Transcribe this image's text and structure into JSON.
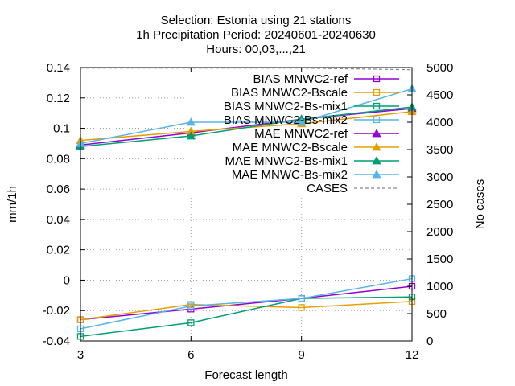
{
  "title_lines": [
    "Selection: Estonia using    21 stations",
    "1h Precipitation   Period: 20240601-20240630",
    "Hours: 00,03,...,21"
  ],
  "chart_data": {
    "type": "line",
    "xlabel": "Forecast length",
    "ylabel": "mm/1h",
    "y2label": "No cases",
    "x": [
      3,
      6,
      9,
      12
    ],
    "xticks": [
      "3",
      "6",
      "9",
      "12"
    ],
    "xlim": [
      3,
      12
    ],
    "ylim": [
      -0.04,
      0.14
    ],
    "yticks": [
      "-0.04",
      "-0.02",
      "0",
      "0.02",
      "0.04",
      "0.06",
      "0.08",
      "0.1",
      "0.12",
      "0.14"
    ],
    "y2lim": [
      0,
      5000
    ],
    "y2ticks": [
      "0",
      "500",
      "1000",
      "1500",
      "2000",
      "2500",
      "3000",
      "3500",
      "4000",
      "4500",
      "5000"
    ],
    "grid": true,
    "legend_position": "top-right",
    "series": [
      {
        "name": "BIAS MNWC2-ref",
        "values": [
          -0.026,
          -0.019,
          -0.012,
          -0.004
        ],
        "color": "#9400d3",
        "marker": "square-open",
        "axis": "y"
      },
      {
        "name": "BIAS MNWC2-Bscale",
        "values": [
          -0.026,
          -0.016,
          -0.018,
          -0.014
        ],
        "color": "#e69f00",
        "marker": "square-open",
        "axis": "y"
      },
      {
        "name": "BIAS MNWC2-Bs-mix1",
        "values": [
          -0.037,
          -0.028,
          -0.012,
          -0.011
        ],
        "color": "#009e73",
        "marker": "square-open",
        "axis": "y"
      },
      {
        "name": "BIAS MNWC2-Bs-mix2",
        "values": [
          -0.032,
          -0.017,
          -0.012,
          0.001
        ],
        "color": "#56b4e9",
        "marker": "square-open",
        "axis": "y"
      },
      {
        "name": "MAE MNWC2-ref",
        "values": [
          0.089,
          0.097,
          0.106,
          0.113
        ],
        "color": "#9400d3",
        "marker": "triangle",
        "axis": "y"
      },
      {
        "name": "MAE MNWC2-Bscale",
        "values": [
          0.092,
          0.098,
          0.103,
          0.111
        ],
        "color": "#e69f00",
        "marker": "triangle",
        "axis": "y"
      },
      {
        "name": "MAE MNWC2-Bs-mix1",
        "values": [
          0.088,
          0.095,
          0.106,
          0.114
        ],
        "color": "#009e73",
        "marker": "triangle",
        "axis": "y"
      },
      {
        "name": "MAE MNWC-Bs-mix2",
        "values": [
          0.09,
          0.104,
          0.104,
          0.126
        ],
        "color": "#56b4e9",
        "marker": "triangle",
        "axis": "y"
      },
      {
        "name": "CASES",
        "values": [
          4990,
          4990,
          4990,
          4960
        ],
        "color": "#888888",
        "marker": "none",
        "dash": true,
        "axis": "y2"
      }
    ]
  }
}
